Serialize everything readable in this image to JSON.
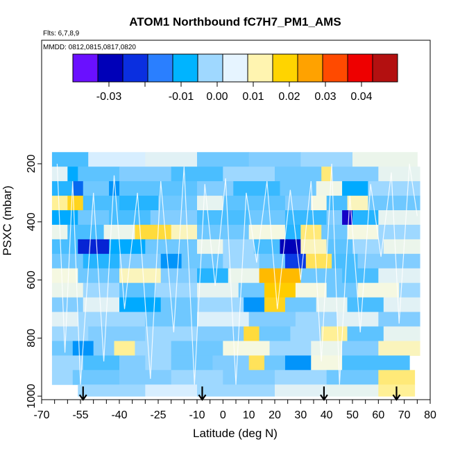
{
  "chart_data": {
    "type": "heatmap",
    "title": "ATOM1 Northbound fC7H7_PM1_AMS",
    "annotations": {
      "flights": "Flts: 6,7,8,9",
      "dates": "MMDD: 0812,0815,0817,0820"
    },
    "xlabel": "Latitude (deg N)",
    "ylabel": "PSXC (mbar)",
    "xlim": [
      -70,
      80
    ],
    "ylim": [
      1000,
      100
    ],
    "x_ticks": [
      -70,
      -55,
      -40,
      -25,
      -10,
      0,
      10,
      20,
      30,
      40,
      50,
      60,
      70,
      80
    ],
    "x_tick_labels": [
      "-70",
      "-55",
      "-40",
      "-25",
      "-10",
      "0",
      "10",
      "20",
      "30",
      "40",
      "50",
      "60",
      "70",
      "80"
    ],
    "y_ticks": [
      200,
      400,
      600,
      800,
      1000
    ],
    "y_tick_labels": [
      "200",
      "400",
      "600",
      "800",
      "1000"
    ],
    "colorbar": {
      "range": [
        -0.04,
        0.05
      ],
      "ticks": [
        -0.03,
        -0.01,
        0.0,
        0.01,
        0.02,
        0.03,
        0.04
      ],
      "tick_labels": [
        "-0.03",
        "-0.01",
        "0.00",
        "0.01",
        "0.02",
        "0.03",
        "0.04"
      ],
      "segment_colors": [
        "#6a10ff",
        "#0000b8",
        "#0a2fe0",
        "#2a7fff",
        "#00b4ff",
        "#9fd8ff",
        "#e6f4ff",
        "#fff4b0",
        "#ffd400",
        "#ffa200",
        "#ff4a00",
        "#ee0000",
        "#b31010"
      ]
    },
    "data_extent": {
      "lat": [
        -66,
        76
      ],
      "psxc": [
        160,
        1000
      ]
    },
    "pressure_bins": [
      {
        "p_top": 160,
        "p_bot": 210,
        "cells": [
          [
            -66,
            -52,
            -0.006
          ],
          [
            -52,
            -30,
            0.0
          ],
          [
            -30,
            -10,
            0.002
          ],
          [
            -10,
            10,
            -0.004
          ],
          [
            10,
            30,
            -0.003
          ],
          [
            30,
            50,
            -0.002
          ],
          [
            50,
            75,
            0.004
          ]
        ]
      },
      {
        "p_top": 210,
        "p_bot": 260,
        "cells": [
          [
            -66,
            -60,
            0.002
          ],
          [
            -60,
            -56,
            -0.01
          ],
          [
            -56,
            -40,
            -0.005
          ],
          [
            -40,
            -20,
            -0.003
          ],
          [
            -20,
            0,
            -0.006
          ],
          [
            0,
            20,
            -0.002
          ],
          [
            20,
            38,
            -0.004
          ],
          [
            38,
            42,
            0.012
          ],
          [
            42,
            60,
            -0.003
          ],
          [
            60,
            76,
            0.003
          ]
        ]
      },
      {
        "p_top": 260,
        "p_bot": 310,
        "cells": [
          [
            -66,
            -58,
            -0.008
          ],
          [
            -58,
            -54,
            -0.016
          ],
          [
            -54,
            -44,
            -0.004
          ],
          [
            -44,
            -40,
            -0.012
          ],
          [
            -40,
            -10,
            -0.005
          ],
          [
            -10,
            4,
            -0.003
          ],
          [
            4,
            22,
            -0.007
          ],
          [
            22,
            36,
            -0.004
          ],
          [
            36,
            46,
            0.005
          ],
          [
            46,
            56,
            -0.01
          ],
          [
            56,
            76,
            -0.002
          ]
        ]
      },
      {
        "p_top": 310,
        "p_bot": 360,
        "cells": [
          [
            -66,
            -60,
            0.01
          ],
          [
            -60,
            -54,
            0.018
          ],
          [
            -54,
            -40,
            -0.006
          ],
          [
            -40,
            -25,
            -0.008
          ],
          [
            -25,
            -10,
            -0.004
          ],
          [
            -10,
            0,
            0.003
          ],
          [
            0,
            24,
            -0.005
          ],
          [
            24,
            34,
            -0.003
          ],
          [
            34,
            40,
            0.006
          ],
          [
            40,
            48,
            -0.006
          ],
          [
            48,
            56,
            0.008
          ],
          [
            56,
            76,
            -0.004
          ]
        ]
      },
      {
        "p_top": 360,
        "p_bot": 410,
        "cells": [
          [
            -66,
            -56,
            -0.01
          ],
          [
            -56,
            -44,
            -0.004
          ],
          [
            -44,
            -28,
            -0.006
          ],
          [
            -28,
            -10,
            -0.003
          ],
          [
            -10,
            10,
            -0.006
          ],
          [
            10,
            24,
            -0.004
          ],
          [
            24,
            40,
            -0.007
          ],
          [
            40,
            46,
            -0.003
          ],
          [
            46,
            50,
            -0.032
          ],
          [
            50,
            60,
            -0.008
          ],
          [
            60,
            76,
            0.003
          ]
        ]
      },
      {
        "p_top": 410,
        "p_bot": 460,
        "cells": [
          [
            -66,
            -60,
            0.004
          ],
          [
            -60,
            -46,
            -0.006
          ],
          [
            -46,
            -34,
            0.004
          ],
          [
            -34,
            -20,
            0.016
          ],
          [
            -20,
            -10,
            0.008
          ],
          [
            -10,
            10,
            -0.004
          ],
          [
            10,
            24,
            0.006
          ],
          [
            24,
            30,
            -0.008
          ],
          [
            30,
            38,
            0.012
          ],
          [
            38,
            48,
            -0.004
          ],
          [
            48,
            60,
            0.006
          ],
          [
            60,
            76,
            -0.002
          ]
        ]
      },
      {
        "p_top": 460,
        "p_bot": 510,
        "cells": [
          [
            -66,
            -56,
            -0.006
          ],
          [
            -56,
            -44,
            -0.024
          ],
          [
            -44,
            -30,
            -0.01
          ],
          [
            -30,
            -10,
            -0.004
          ],
          [
            -10,
            0,
            0.004
          ],
          [
            0,
            12,
            -0.002
          ],
          [
            12,
            22,
            -0.006
          ],
          [
            22,
            30,
            -0.03
          ],
          [
            30,
            40,
            0.008
          ],
          [
            40,
            50,
            -0.005
          ],
          [
            50,
            62,
            -0.002
          ],
          [
            62,
            76,
            0.004
          ]
        ]
      },
      {
        "p_top": 510,
        "p_bot": 560,
        "cells": [
          [
            -66,
            -54,
            -0.004
          ],
          [
            -54,
            -40,
            -0.008
          ],
          [
            -40,
            -24,
            -0.003
          ],
          [
            -24,
            -16,
            -0.012
          ],
          [
            -16,
            0,
            -0.004
          ],
          [
            0,
            14,
            -0.002
          ],
          [
            14,
            24,
            -0.004
          ],
          [
            24,
            32,
            -0.02
          ],
          [
            32,
            42,
            0.014
          ],
          [
            42,
            52,
            -0.006
          ],
          [
            52,
            76,
            -0.003
          ]
        ]
      },
      {
        "p_top": 560,
        "p_bot": 610,
        "cells": [
          [
            -66,
            -56,
            0.006
          ],
          [
            -56,
            -40,
            -0.004
          ],
          [
            -40,
            -24,
            0.008
          ],
          [
            -24,
            -10,
            -0.003
          ],
          [
            -10,
            2,
            -0.008
          ],
          [
            2,
            14,
            0.004
          ],
          [
            14,
            30,
            0.022
          ],
          [
            30,
            46,
            -0.004
          ],
          [
            46,
            60,
            -0.006
          ],
          [
            60,
            76,
            0.002
          ]
        ]
      },
      {
        "p_top": 610,
        "p_bot": 660,
        "cells": [
          [
            -66,
            -54,
            0.004
          ],
          [
            -54,
            -40,
            -0.002
          ],
          [
            -40,
            -26,
            -0.005
          ],
          [
            -26,
            -10,
            -0.002
          ],
          [
            -10,
            6,
            0.003
          ],
          [
            6,
            16,
            -0.004
          ],
          [
            16,
            28,
            0.02
          ],
          [
            28,
            40,
            0.006
          ],
          [
            40,
            52,
            -0.004
          ],
          [
            52,
            68,
            0.006
          ],
          [
            68,
            76,
            -0.002
          ]
        ]
      },
      {
        "p_top": 660,
        "p_bot": 710,
        "cells": [
          [
            -66,
            -54,
            -0.003
          ],
          [
            -54,
            -40,
            0.002
          ],
          [
            -40,
            -24,
            -0.01
          ],
          [
            -24,
            -10,
            -0.004
          ],
          [
            -10,
            8,
            -0.002
          ],
          [
            8,
            16,
            -0.012
          ],
          [
            16,
            24,
            0.018
          ],
          [
            24,
            36,
            -0.004
          ],
          [
            36,
            48,
            0.003
          ],
          [
            48,
            62,
            -0.006
          ],
          [
            62,
            76,
            0.002
          ]
        ]
      },
      {
        "p_top": 710,
        "p_bot": 760,
        "cells": [
          [
            -66,
            -56,
            0.002
          ],
          [
            -56,
            -30,
            -0.002
          ],
          [
            -30,
            -10,
            -0.004
          ],
          [
            -10,
            10,
            0.001
          ],
          [
            10,
            28,
            -0.003
          ],
          [
            28,
            44,
            -0.002
          ],
          [
            44,
            60,
            0.002
          ],
          [
            60,
            76,
            -0.003
          ]
        ]
      },
      {
        "p_top": 760,
        "p_bot": 810,
        "cells": [
          [
            -66,
            -52,
            -0.002
          ],
          [
            -52,
            -30,
            -0.003
          ],
          [
            -30,
            -10,
            -0.002
          ],
          [
            -10,
            8,
            -0.003
          ],
          [
            8,
            14,
            0.016
          ],
          [
            14,
            26,
            -0.004
          ],
          [
            26,
            38,
            -0.002
          ],
          [
            38,
            48,
            0.01
          ],
          [
            48,
            62,
            -0.005
          ],
          [
            62,
            76,
            0.003
          ]
        ]
      },
      {
        "p_top": 810,
        "p_bot": 860,
        "cells": [
          [
            -66,
            -58,
            -0.004
          ],
          [
            -58,
            -50,
            -0.012
          ],
          [
            -50,
            -42,
            -0.003
          ],
          [
            -42,
            -34,
            0.01
          ],
          [
            -34,
            -20,
            -0.002
          ],
          [
            -20,
            0,
            -0.004
          ],
          [
            0,
            18,
            0.006
          ],
          [
            18,
            34,
            -0.002
          ],
          [
            34,
            46,
            0.004
          ],
          [
            46,
            60,
            -0.003
          ],
          [
            60,
            76,
            0.008
          ]
        ]
      },
      {
        "p_top": 860,
        "p_bot": 910,
        "cells": [
          [
            -66,
            -54,
            -0.002
          ],
          [
            -54,
            -40,
            -0.006
          ],
          [
            -40,
            -30,
            -0.003
          ],
          [
            -30,
            -20,
            -0.002
          ],
          [
            -20,
            -4,
            -0.004
          ],
          [
            -4,
            10,
            -0.003
          ],
          [
            10,
            16,
            0.014
          ],
          [
            16,
            24,
            -0.004
          ],
          [
            24,
            34,
            -0.012
          ],
          [
            34,
            46,
            0.006
          ],
          [
            46,
            72,
            -0.006
          ]
        ]
      },
      {
        "p_top": 910,
        "p_bot": 960,
        "cells": [
          [
            -66,
            -58,
            -0.002
          ],
          [
            -58,
            -40,
            -0.004
          ],
          [
            -40,
            -20,
            -0.003
          ],
          [
            -20,
            0,
            -0.002
          ],
          [
            0,
            20,
            -0.003
          ],
          [
            20,
            40,
            -0.002
          ],
          [
            40,
            60,
            -0.004
          ],
          [
            60,
            74,
            0.012
          ]
        ]
      },
      {
        "p_top": 960,
        "p_bot": 1000,
        "cells": [
          [
            -56,
            -30,
            -0.002
          ],
          [
            -30,
            -10,
            0.0
          ],
          [
            -10,
            20,
            -0.002
          ],
          [
            20,
            40,
            0.002
          ],
          [
            40,
            60,
            0.003
          ],
          [
            60,
            74,
            0.01
          ]
        ]
      }
    ],
    "arrow_latitudes": [
      -54,
      -8,
      39,
      67
    ]
  }
}
